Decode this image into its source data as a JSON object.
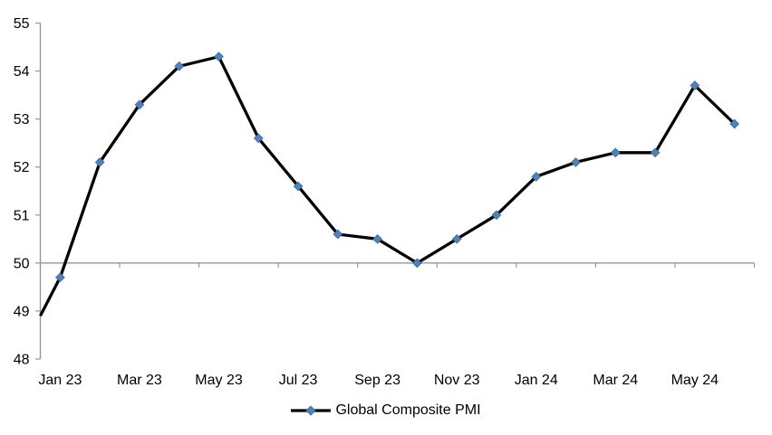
{
  "chart_data": {
    "type": "line",
    "title": "",
    "xlabel": "",
    "ylabel": "",
    "categories": [
      "Jan 23",
      "Feb 23",
      "Mar 23",
      "Apr 23",
      "May 23",
      "Jun 23",
      "Jul 23",
      "Aug 23",
      "Sep 23",
      "Oct 23",
      "Nov 23",
      "Dec 23",
      "Jan 24",
      "Feb 24",
      "Mar 24",
      "Apr 24",
      "May 24",
      "Jun 24"
    ],
    "series": [
      {
        "name": "Global Composite PMI",
        "values": [
          49.7,
          52.1,
          53.3,
          54.1,
          54.3,
          52.6,
          51.6,
          50.6,
          50.5,
          50.0,
          50.5,
          51.0,
          51.8,
          52.1,
          52.3,
          52.3,
          53.7,
          52.9
        ]
      }
    ],
    "clipped_left_edge_start_value": 48.9,
    "ylim": [
      48,
      55
    ],
    "y_ticks": [
      55,
      54,
      53,
      52,
      51,
      50,
      49,
      48
    ],
    "x_tick_labels": [
      "Jan 23",
      "Mar 23",
      "May 23",
      "Jul 23",
      "Sep 23",
      "Nov 23",
      "Jan 24",
      "Mar 24",
      "May 24"
    ],
    "x_tick_mark_interval": 2,
    "x_axis_crosses_at": 50,
    "grid": false,
    "legend_position": "bottom"
  },
  "legend": {
    "label": "Global Composite PMI"
  },
  "colors": {
    "line": "#000000",
    "marker_fill": "#4F81BD",
    "marker_edge": "#3A679C",
    "axis": "#969696",
    "text": "#000000",
    "background": "#FFFFFF"
  }
}
